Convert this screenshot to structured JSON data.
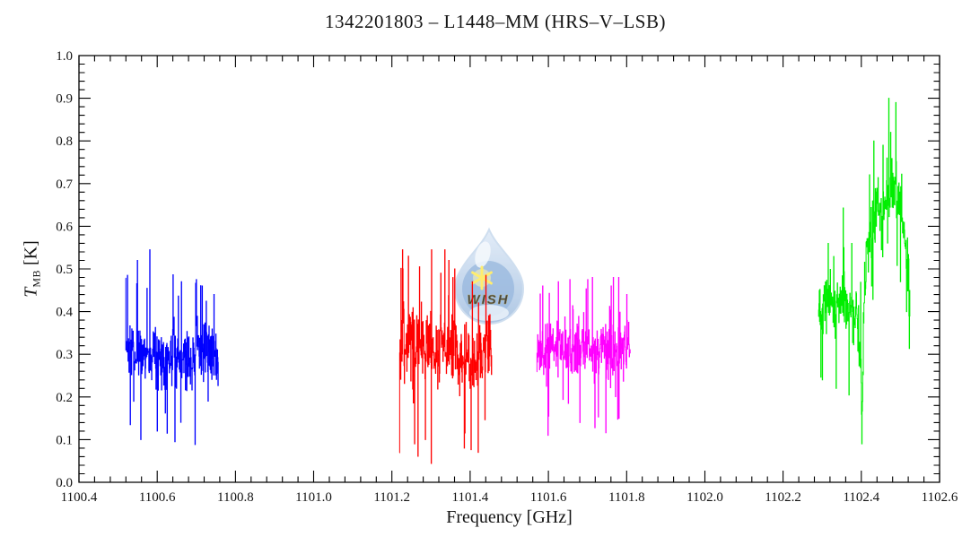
{
  "title": "1342201803 – L1448–MM (HRS–V–LSB)",
  "axes": {
    "xlabel": "Frequency [GHz]",
    "ylabel": {
      "symbol": "T",
      "subscript": "MB",
      "unit": " [K]"
    },
    "x_tick_labels": [
      "1100.4",
      "1100.6",
      "1100.8",
      "1101.0",
      "1101.2",
      "1101.4",
      "1101.6",
      "1101.8",
      "1102.0",
      "1102.2",
      "1102.4",
      "1102.6"
    ],
    "y_tick_labels": [
      "0.0",
      "0.1",
      "0.2",
      "0.3",
      "0.4",
      "0.5",
      "0.6",
      "0.7",
      "0.8",
      "0.9",
      "1.0"
    ]
  },
  "watermark": {
    "text": "WISH",
    "drop_top_color": "#dde9f7",
    "drop_bottom_color": "#9bbade",
    "drop_inner_color": "#7ea6d6",
    "drop_outline_color": "#c3d6ec",
    "star_color": "#ffe94a",
    "text_color": "#dfc838",
    "opacity": 0.8
  },
  "chart_data": {
    "type": "line",
    "title": "1342201803 – L1448–MM (HRS–V–LSB)",
    "xlabel": "Frequency [GHz]",
    "ylabel": "T_MB [K]",
    "xlim": [
      1100.4,
      1102.6
    ],
    "ylim": [
      0.0,
      1.0
    ],
    "x_major_step": 0.2,
    "x_minor_step": 0.04,
    "y_major_step": 0.1,
    "y_minor_step": 0.02,
    "grid": false,
    "legend": false,
    "tick_style": "inward-all-sides",
    "series": [
      {
        "name": "segment-blue",
        "color": "#0000ff",
        "x_start": 1100.519,
        "x_end": 1100.756,
        "n_points": 300,
        "seed": 7,
        "baseline_K": 0.3,
        "noise_sigma": 0.053,
        "clip": [
          0.085,
          0.55
        ],
        "envelope": [
          [
            1100.519,
            0.305
          ],
          [
            1100.56,
            0.3
          ],
          [
            1100.62,
            0.29
          ],
          [
            1100.68,
            0.3
          ],
          [
            1100.72,
            0.315
          ],
          [
            1100.756,
            0.3
          ]
        ],
        "spikes": [
          [
            1100.524,
            0.485
          ],
          [
            1100.531,
            0.135
          ],
          [
            1100.549,
            0.52
          ],
          [
            1100.558,
            0.1
          ],
          [
            1100.581,
            0.545
          ],
          [
            1100.6,
            0.12
          ],
          [
            1100.625,
            0.115
          ],
          [
            1100.645,
            0.095
          ],
          [
            1100.662,
            0.47
          ],
          [
            1100.7,
            0.475
          ],
          [
            1100.715,
            0.46
          ],
          [
            1100.73,
            0.19
          ],
          [
            1100.745,
            0.44
          ]
        ]
      },
      {
        "name": "segment-red",
        "color": "#ff0000",
        "x_start": 1101.219,
        "x_end": 1101.455,
        "n_points": 300,
        "seed": 13,
        "baseline_K": 0.31,
        "noise_sigma": 0.058,
        "clip": [
          0.044,
          0.545
        ],
        "envelope": [
          [
            1101.219,
            0.325
          ],
          [
            1101.26,
            0.33
          ],
          [
            1101.3,
            0.315
          ],
          [
            1101.36,
            0.3
          ],
          [
            1101.41,
            0.29
          ],
          [
            1101.455,
            0.3
          ]
        ],
        "spikes": [
          [
            1101.228,
            0.5
          ],
          [
            1101.242,
            0.53
          ],
          [
            1101.258,
            0.09
          ],
          [
            1101.27,
            0.505
          ],
          [
            1101.285,
            0.1
          ],
          [
            1101.3,
            0.044
          ],
          [
            1101.325,
            0.49
          ],
          [
            1101.345,
            0.52
          ],
          [
            1101.36,
            0.5
          ],
          [
            1101.385,
            0.08
          ],
          [
            1101.405,
            0.47
          ],
          [
            1101.42,
            0.07
          ],
          [
            1101.44,
            0.485
          ]
        ]
      },
      {
        "name": "segment-magenta",
        "color": "#ff00ff",
        "x_start": 1101.57,
        "x_end": 1101.809,
        "n_points": 300,
        "seed": 21,
        "baseline_K": 0.315,
        "noise_sigma": 0.048,
        "clip": [
          0.11,
          0.48
        ],
        "envelope": [
          [
            1101.57,
            0.315
          ],
          [
            1101.65,
            0.32
          ],
          [
            1101.72,
            0.31
          ],
          [
            1101.809,
            0.315
          ]
        ],
        "spikes": [
          [
            1101.585,
            0.46
          ],
          [
            1101.6,
            0.155
          ],
          [
            1101.625,
            0.47
          ],
          [
            1101.655,
            0.475
          ],
          [
            1101.68,
            0.14
          ],
          [
            1101.7,
            0.475
          ],
          [
            1101.719,
            0.128
          ],
          [
            1101.747,
            0.116
          ],
          [
            1101.76,
            0.46
          ],
          [
            1101.78,
            0.15
          ],
          [
            1101.8,
            0.44
          ]
        ]
      },
      {
        "name": "segment-green",
        "color": "#00ee00",
        "x_start": 1102.29,
        "x_end": 1102.524,
        "n_points": 300,
        "seed": 33,
        "baseline_K": 0.42,
        "noise_sigma": 0.052,
        "clip": [
          0.085,
          0.9
        ],
        "envelope": [
          [
            1102.29,
            0.4
          ],
          [
            1102.31,
            0.43
          ],
          [
            1102.34,
            0.41
          ],
          [
            1102.37,
            0.4
          ],
          [
            1102.39,
            0.38
          ],
          [
            1102.398,
            0.28
          ],
          [
            1102.402,
            0.14
          ],
          [
            1102.406,
            0.42
          ],
          [
            1102.415,
            0.55
          ],
          [
            1102.435,
            0.62
          ],
          [
            1102.455,
            0.67
          ],
          [
            1102.475,
            0.7
          ],
          [
            1102.49,
            0.7
          ],
          [
            1102.505,
            0.6
          ],
          [
            1102.515,
            0.52
          ],
          [
            1102.524,
            0.44
          ]
        ],
        "spikes": [
          [
            1102.3,
            0.24
          ],
          [
            1102.315,
            0.56
          ],
          [
            1102.335,
            0.22
          ],
          [
            1102.355,
            0.55
          ],
          [
            1102.375,
            0.56
          ],
          [
            1102.401,
            0.09
          ],
          [
            1102.432,
            0.8
          ],
          [
            1102.455,
            0.79
          ],
          [
            1102.475,
            0.82
          ],
          [
            1102.488,
            0.89
          ],
          [
            1102.5,
            0.47
          ],
          [
            1102.515,
            0.4
          ],
          [
            1102.522,
            0.39
          ]
        ]
      }
    ]
  }
}
